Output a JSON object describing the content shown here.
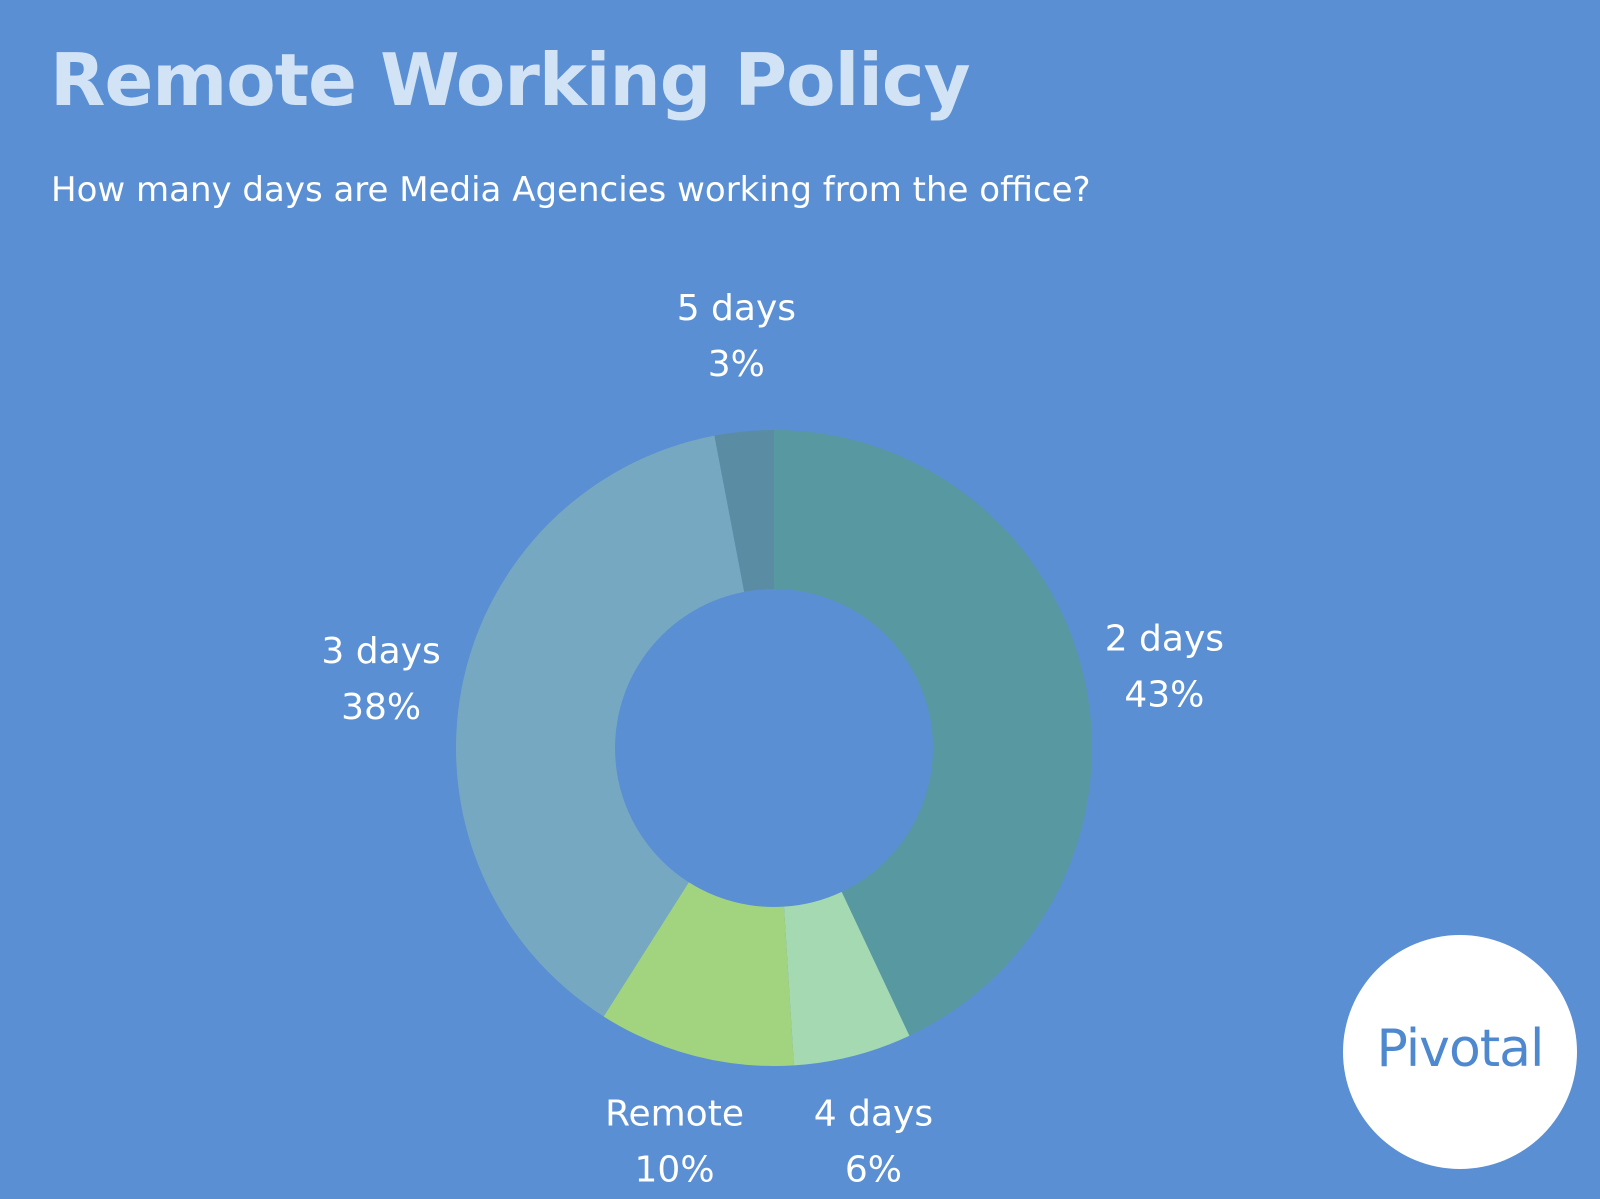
{
  "header": {
    "title": "Remote Working Policy",
    "subtitle": "How many days are Media Agencies working from the office?"
  },
  "logo": {
    "text": "Pivotal"
  },
  "chart_data": {
    "type": "pie",
    "style": "donut",
    "start": "top",
    "direction": "clockwise",
    "slices": [
      {
        "name": "2 days",
        "value": 43,
        "label": "43%",
        "color": "#5898a0"
      },
      {
        "name": "4 days",
        "value": 6,
        "label": "6%",
        "color": "#a4d9b2"
      },
      {
        "name": "Remote",
        "value": 10,
        "label": "10%",
        "color": "#a2d47f"
      },
      {
        "name": "3 days",
        "value": 38,
        "label": "38%",
        "color": "#76a9c1"
      },
      {
        "name": "5 days",
        "value": 3,
        "label": "3%",
        "color": "#5a8ca4"
      }
    ]
  }
}
